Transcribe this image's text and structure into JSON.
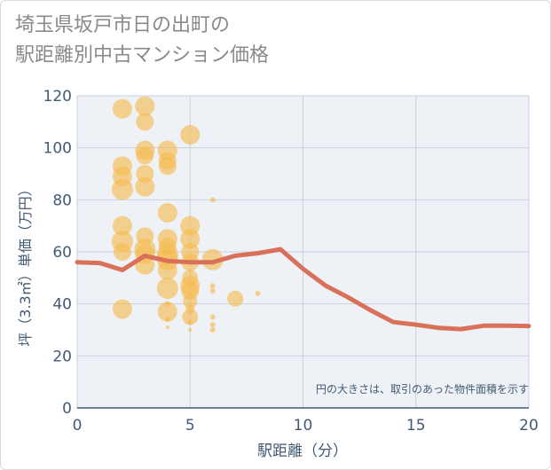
{
  "page_title": {
    "line1": "埼玉県坂戸市日の出町の",
    "line2": "駅距離別中古マンション価格"
  },
  "colors": {
    "bubble": "#f5b94e",
    "trend": "#d9705a",
    "axis_text": "#425a73",
    "grid": "#c8d1dc",
    "plot_bg": "#eef1f5"
  },
  "chart_data": {
    "type": "scatter",
    "title": "埼玉県坂戸市日の出町の駅距離別中古マンション価格",
    "xlabel": "駅距離（分）",
    "ylabel": "坪（3.3㎡）単価（万円）",
    "xlim": [
      0,
      20
    ],
    "ylim": [
      0,
      120
    ],
    "x_ticks": [
      "0",
      "5",
      "10",
      "15",
      "20"
    ],
    "y_ticks": [
      "0",
      "20",
      "40",
      "60",
      "80",
      "100",
      "120"
    ],
    "annotation": "円の大きさは、取引のあった物件面積を示す",
    "bubbles": [
      {
        "x": 2,
        "y": 115,
        "r": 11
      },
      {
        "x": 2,
        "y": 93,
        "r": 11
      },
      {
        "x": 2,
        "y": 89,
        "r": 11
      },
      {
        "x": 2,
        "y": 84,
        "r": 12
      },
      {
        "x": 2,
        "y": 70,
        "r": 11
      },
      {
        "x": 2,
        "y": 64,
        "r": 12
      },
      {
        "x": 2,
        "y": 60,
        "r": 10
      },
      {
        "x": 2,
        "y": 38,
        "r": 11
      },
      {
        "x": 3,
        "y": 116,
        "r": 11
      },
      {
        "x": 3,
        "y": 110,
        "r": 10
      },
      {
        "x": 3,
        "y": 99,
        "r": 11
      },
      {
        "x": 3,
        "y": 97,
        "r": 10
      },
      {
        "x": 3,
        "y": 90,
        "r": 10
      },
      {
        "x": 3,
        "y": 85,
        "r": 11
      },
      {
        "x": 3,
        "y": 66,
        "r": 10
      },
      {
        "x": 3,
        "y": 61,
        "r": 12
      },
      {
        "x": 3,
        "y": 59,
        "r": 11
      },
      {
        "x": 3,
        "y": 55,
        "r": 11
      },
      {
        "x": 4,
        "y": 99,
        "r": 11
      },
      {
        "x": 4,
        "y": 95,
        "r": 10
      },
      {
        "x": 4,
        "y": 93,
        "r": 10
      },
      {
        "x": 4,
        "y": 75,
        "r": 11
      },
      {
        "x": 4,
        "y": 65,
        "r": 11
      },
      {
        "x": 4,
        "y": 62,
        "r": 10
      },
      {
        "x": 4,
        "y": 59,
        "r": 12
      },
      {
        "x": 4,
        "y": 57,
        "r": 12
      },
      {
        "x": 4,
        "y": 53,
        "r": 11
      },
      {
        "x": 4,
        "y": 46,
        "r": 12
      },
      {
        "x": 4,
        "y": 40,
        "r": 3
      },
      {
        "x": 4,
        "y": 37,
        "r": 11
      },
      {
        "x": 4,
        "y": 34,
        "r": 3
      },
      {
        "x": 4,
        "y": 31,
        "r": 2
      },
      {
        "x": 5,
        "y": 105,
        "r": 11
      },
      {
        "x": 5,
        "y": 70,
        "r": 11
      },
      {
        "x": 5,
        "y": 65,
        "r": 11
      },
      {
        "x": 5,
        "y": 60,
        "r": 10
      },
      {
        "x": 5,
        "y": 56,
        "r": 10
      },
      {
        "x": 5,
        "y": 50,
        "r": 9
      },
      {
        "x": 5,
        "y": 47,
        "r": 11
      },
      {
        "x": 5,
        "y": 45,
        "r": 10
      },
      {
        "x": 5,
        "y": 41,
        "r": 8
      },
      {
        "x": 5,
        "y": 38,
        "r": 5
      },
      {
        "x": 5,
        "y": 35,
        "r": 9
      },
      {
        "x": 5,
        "y": 33,
        "r": 3
      },
      {
        "x": 5,
        "y": 30,
        "r": 2
      },
      {
        "x": 6,
        "y": 80,
        "r": 3
      },
      {
        "x": 6,
        "y": 57,
        "r": 12
      },
      {
        "x": 6,
        "y": 47,
        "r": 3
      },
      {
        "x": 6,
        "y": 45,
        "r": 3
      },
      {
        "x": 6,
        "y": 35,
        "r": 3
      },
      {
        "x": 6,
        "y": 32,
        "r": 3
      },
      {
        "x": 6,
        "y": 30,
        "r": 3
      },
      {
        "x": 7,
        "y": 42,
        "r": 9
      },
      {
        "x": 8,
        "y": 44,
        "r": 3
      }
    ],
    "trend_line": {
      "x": [
        0,
        1,
        2,
        3,
        4,
        5,
        6,
        7,
        8,
        9,
        10,
        11,
        12,
        13,
        14,
        15,
        16,
        17,
        18,
        19,
        20
      ],
      "y": [
        56,
        55.7,
        53,
        58.5,
        56.5,
        56,
        56,
        58.5,
        59.5,
        61,
        53.5,
        47,
        42.5,
        37.5,
        33,
        32,
        30.8,
        30.3,
        31.6,
        31.6,
        31.5
      ]
    }
  }
}
